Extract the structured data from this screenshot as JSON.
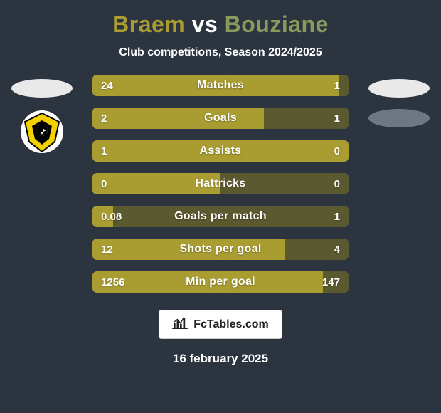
{
  "title": {
    "player1_name": "Braem",
    "vs_text": "vs",
    "player2_name": "Bouziane",
    "player1_color": "#a99d32",
    "player2_color": "#8a9a5b"
  },
  "subtitle": "Club competitions, Season 2024/2025",
  "background_color": "#2c3440",
  "bar_colors": {
    "left_fill": "#a99d32",
    "right_fill": "#5b5930",
    "track": "#6c6838"
  },
  "badges": {
    "left_ellipse_color": "#e9e9e9",
    "right_ellipse_color_1": "#e9e9e9",
    "right_ellipse_color_2": "#6f7784",
    "crest_primary": "#f3d100",
    "crest_black": "#000000",
    "crest_white": "#ffffff"
  },
  "stats": [
    {
      "label": "Matches",
      "left_value": "24",
      "right_value": "1",
      "left_pct": 96,
      "right_pct": 4
    },
    {
      "label": "Goals",
      "left_value": "2",
      "right_value": "1",
      "left_pct": 67,
      "right_pct": 33
    },
    {
      "label": "Assists",
      "left_value": "1",
      "right_value": "0",
      "left_pct": 100,
      "right_pct": 0
    },
    {
      "label": "Hattricks",
      "left_value": "0",
      "right_value": "0",
      "left_pct": 50,
      "right_pct": 50
    },
    {
      "label": "Goals per match",
      "left_value": "0.08",
      "right_value": "1",
      "left_pct": 8,
      "right_pct": 92
    },
    {
      "label": "Shots per goal",
      "left_value": "12",
      "right_value": "4",
      "left_pct": 75,
      "right_pct": 25
    },
    {
      "label": "Min per goal",
      "left_value": "1256",
      "right_value": "147",
      "left_pct": 90,
      "right_pct": 10
    }
  ],
  "footer": {
    "brand_text": "FcTables.com",
    "date_text": "16 february 2025"
  }
}
